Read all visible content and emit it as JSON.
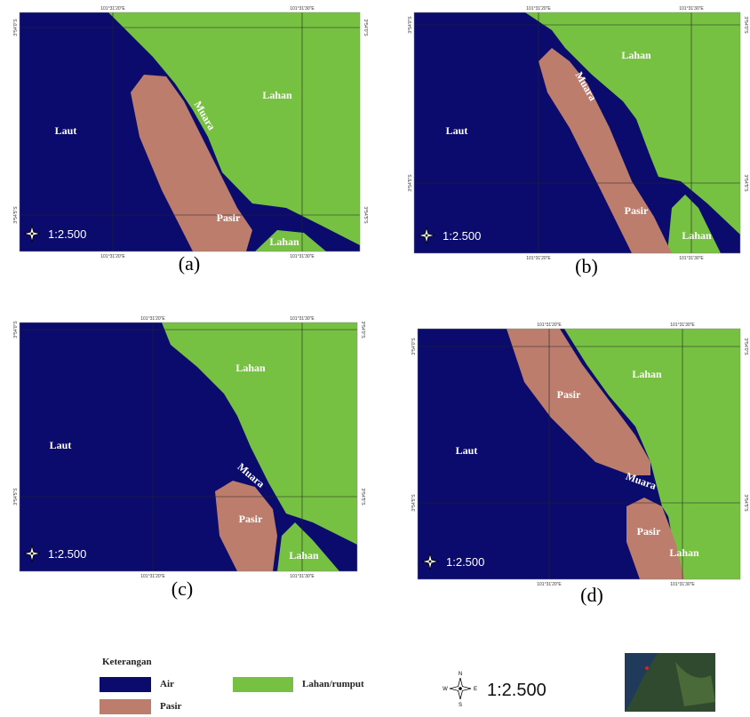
{
  "panels": [
    {
      "caption": "(a)",
      "scale": "1:2.500",
      "lon": [
        "101°31'20\"E",
        "101°31'30\"E"
      ],
      "lat": [
        "3°54'0\"S",
        "3°54'5\"S"
      ],
      "labels": [
        "Laut",
        "Muara",
        "Lahan",
        "Pasir",
        "Lahan"
      ]
    },
    {
      "caption": "(b)",
      "scale": "1:2.500",
      "lon": [
        "101°31'20\"E",
        "101°31'30\"E"
      ],
      "lat": [
        "3°54'0\"S",
        "3°54'5\"S"
      ],
      "labels": [
        "Laut",
        "Muara",
        "Lahan",
        "Pasir",
        "Lahan"
      ]
    },
    {
      "caption": "(c)",
      "scale": "1:2.500",
      "lon": [
        "101°31'20\"E",
        "101°31'30\"E"
      ],
      "lat": [
        "3°54'0\"S",
        "3°54'5\"S"
      ],
      "labels": [
        "Laut",
        "Muara",
        "Lahan",
        "Pasir",
        "Lahan"
      ]
    },
    {
      "caption": "(d)",
      "scale": "1:2.500",
      "lon": [
        "101°31'20\"E",
        "101°31'30\"E"
      ],
      "lat": [
        "3°54'0\"S",
        "3°54'5\"S"
      ],
      "labels": [
        "Pasir",
        "Lahan",
        "Laut",
        "Muara",
        "Pasir",
        "Lahan"
      ]
    }
  ],
  "legend": {
    "title": "Keterangan",
    "items": [
      "Air",
      "Pasir",
      "Lahan/rumput"
    ],
    "scale": "1:2.500",
    "compass": [
      "N",
      "E",
      "S",
      "W"
    ]
  }
}
